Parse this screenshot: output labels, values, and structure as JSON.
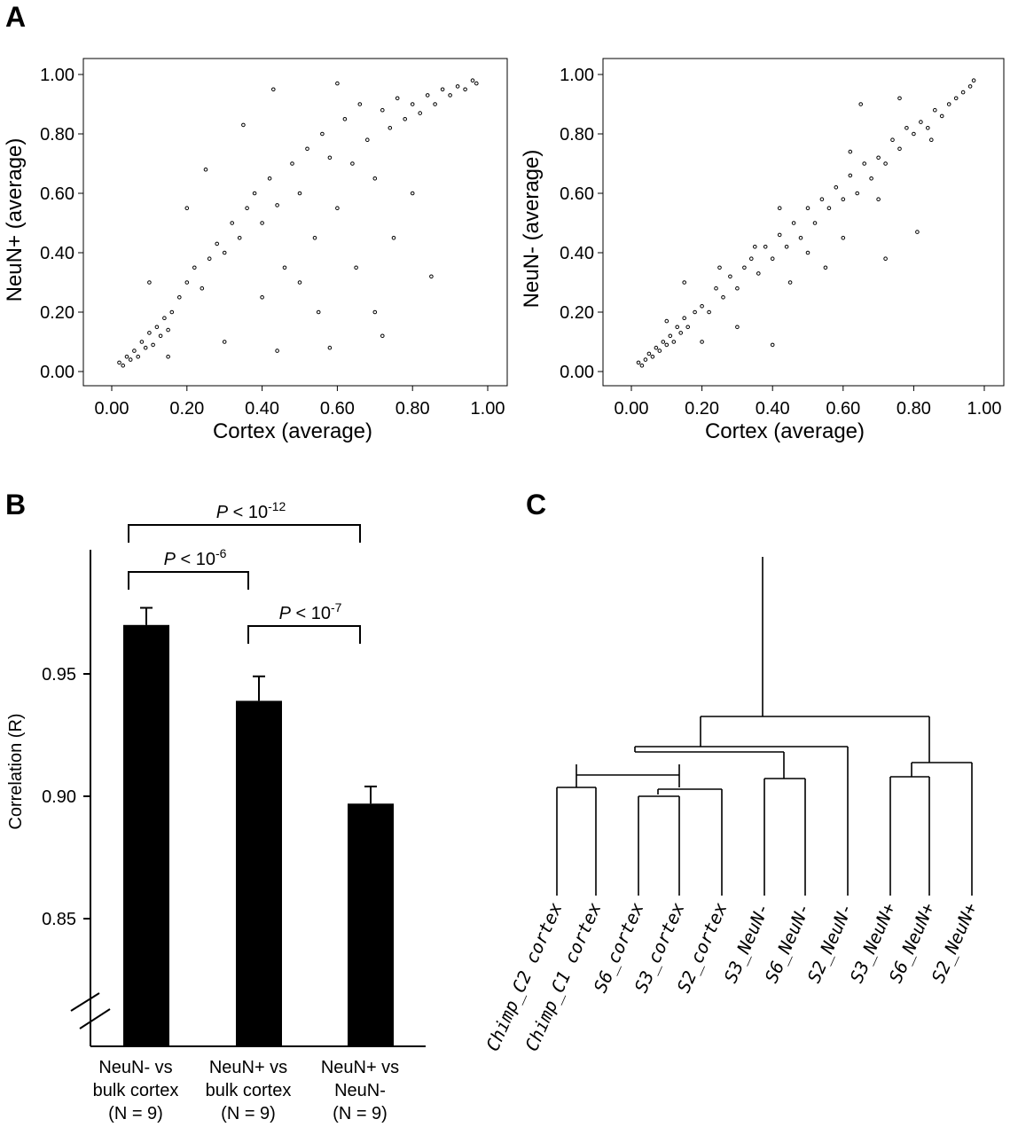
{
  "panels": {
    "A": "A",
    "B": "B",
    "C": "C"
  },
  "chart_data": [
    {
      "type": "scatter",
      "panel": "A",
      "xlabel": "Cortex (average)",
      "ylabel": "NeuN+ (average)",
      "xlim": [
        0,
        1
      ],
      "ylim": [
        0,
        1
      ],
      "xticks": [
        "0.00",
        "0.20",
        "0.40",
        "0.60",
        "0.80",
        "1.00"
      ],
      "yticks": [
        "0.00",
        "0.20",
        "0.40",
        "0.60",
        "0.80",
        "1.00"
      ],
      "points": [
        [
          0.02,
          0.03
        ],
        [
          0.03,
          0.02
        ],
        [
          0.04,
          0.05
        ],
        [
          0.05,
          0.04
        ],
        [
          0.06,
          0.07
        ],
        [
          0.07,
          0.05
        ],
        [
          0.08,
          0.1
        ],
        [
          0.09,
          0.08
        ],
        [
          0.1,
          0.13
        ],
        [
          0.11,
          0.09
        ],
        [
          0.12,
          0.15
        ],
        [
          0.13,
          0.12
        ],
        [
          0.14,
          0.18
        ],
        [
          0.15,
          0.14
        ],
        [
          0.16,
          0.2
        ],
        [
          0.18,
          0.25
        ],
        [
          0.2,
          0.3
        ],
        [
          0.22,
          0.35
        ],
        [
          0.24,
          0.28
        ],
        [
          0.26,
          0.38
        ],
        [
          0.28,
          0.43
        ],
        [
          0.3,
          0.4
        ],
        [
          0.32,
          0.5
        ],
        [
          0.34,
          0.45
        ],
        [
          0.36,
          0.55
        ],
        [
          0.38,
          0.6
        ],
        [
          0.4,
          0.5
        ],
        [
          0.42,
          0.65
        ],
        [
          0.44,
          0.56
        ],
        [
          0.46,
          0.35
        ],
        [
          0.48,
          0.7
        ],
        [
          0.5,
          0.6
        ],
        [
          0.52,
          0.75
        ],
        [
          0.54,
          0.45
        ],
        [
          0.56,
          0.8
        ],
        [
          0.58,
          0.72
        ],
        [
          0.6,
          0.55
        ],
        [
          0.62,
          0.85
        ],
        [
          0.64,
          0.7
        ],
        [
          0.66,
          0.9
        ],
        [
          0.68,
          0.78
        ],
        [
          0.7,
          0.65
        ],
        [
          0.72,
          0.88
        ],
        [
          0.74,
          0.82
        ],
        [
          0.76,
          0.92
        ],
        [
          0.78,
          0.85
        ],
        [
          0.8,
          0.9
        ],
        [
          0.82,
          0.87
        ],
        [
          0.84,
          0.93
        ],
        [
          0.86,
          0.9
        ],
        [
          0.88,
          0.95
        ],
        [
          0.9,
          0.93
        ],
        [
          0.92,
          0.96
        ],
        [
          0.94,
          0.95
        ],
        [
          0.96,
          0.98
        ],
        [
          0.97,
          0.97
        ],
        [
          0.2,
          0.55
        ],
        [
          0.25,
          0.68
        ],
        [
          0.43,
          0.95
        ],
        [
          0.35,
          0.83
        ],
        [
          0.6,
          0.97
        ],
        [
          0.44,
          0.07
        ],
        [
          0.58,
          0.08
        ],
        [
          0.72,
          0.12
        ],
        [
          0.3,
          0.1
        ],
        [
          0.5,
          0.3
        ],
        [
          0.65,
          0.35
        ],
        [
          0.75,
          0.45
        ],
        [
          0.85,
          0.32
        ],
        [
          0.7,
          0.2
        ],
        [
          0.1,
          0.3
        ],
        [
          0.15,
          0.05
        ],
        [
          0.55,
          0.2
        ],
        [
          0.4,
          0.25
        ],
        [
          0.8,
          0.6
        ]
      ]
    },
    {
      "type": "scatter",
      "panel": "A",
      "xlabel": "Cortex (average)",
      "ylabel": "NeuN- (average)",
      "xlim": [
        0,
        1
      ],
      "ylim": [
        0,
        1
      ],
      "xticks": [
        "0.00",
        "0.20",
        "0.40",
        "0.60",
        "0.80",
        "1.00"
      ],
      "yticks": [
        "0.00",
        "0.20",
        "0.40",
        "0.60",
        "0.80",
        "1.00"
      ],
      "points": [
        [
          0.02,
          0.03
        ],
        [
          0.03,
          0.02
        ],
        [
          0.04,
          0.04
        ],
        [
          0.05,
          0.06
        ],
        [
          0.06,
          0.05
        ],
        [
          0.07,
          0.08
        ],
        [
          0.08,
          0.07
        ],
        [
          0.09,
          0.1
        ],
        [
          0.1,
          0.09
        ],
        [
          0.11,
          0.12
        ],
        [
          0.12,
          0.1
        ],
        [
          0.13,
          0.15
        ],
        [
          0.14,
          0.13
        ],
        [
          0.15,
          0.18
        ],
        [
          0.16,
          0.15
        ],
        [
          0.18,
          0.2
        ],
        [
          0.2,
          0.22
        ],
        [
          0.22,
          0.2
        ],
        [
          0.24,
          0.28
        ],
        [
          0.26,
          0.25
        ],
        [
          0.28,
          0.32
        ],
        [
          0.3,
          0.28
        ],
        [
          0.32,
          0.35
        ],
        [
          0.34,
          0.38
        ],
        [
          0.36,
          0.33
        ],
        [
          0.38,
          0.42
        ],
        [
          0.4,
          0.38
        ],
        [
          0.42,
          0.46
        ],
        [
          0.44,
          0.42
        ],
        [
          0.46,
          0.5
        ],
        [
          0.48,
          0.45
        ],
        [
          0.5,
          0.55
        ],
        [
          0.52,
          0.5
        ],
        [
          0.54,
          0.58
        ],
        [
          0.56,
          0.55
        ],
        [
          0.58,
          0.62
        ],
        [
          0.6,
          0.58
        ],
        [
          0.62,
          0.66
        ],
        [
          0.64,
          0.6
        ],
        [
          0.66,
          0.7
        ],
        [
          0.68,
          0.65
        ],
        [
          0.7,
          0.72
        ],
        [
          0.72,
          0.7
        ],
        [
          0.74,
          0.78
        ],
        [
          0.76,
          0.75
        ],
        [
          0.78,
          0.82
        ],
        [
          0.8,
          0.8
        ],
        [
          0.82,
          0.84
        ],
        [
          0.84,
          0.82
        ],
        [
          0.86,
          0.88
        ],
        [
          0.88,
          0.86
        ],
        [
          0.9,
          0.9
        ],
        [
          0.92,
          0.92
        ],
        [
          0.94,
          0.94
        ],
        [
          0.96,
          0.96
        ],
        [
          0.97,
          0.98
        ],
        [
          0.76,
          0.92
        ],
        [
          0.81,
          0.47
        ],
        [
          0.72,
          0.38
        ],
        [
          0.65,
          0.9
        ],
        [
          0.55,
          0.35
        ],
        [
          0.45,
          0.3
        ],
        [
          0.35,
          0.42
        ],
        [
          0.25,
          0.35
        ],
        [
          0.15,
          0.3
        ],
        [
          0.4,
          0.09
        ],
        [
          0.6,
          0.45
        ],
        [
          0.3,
          0.15
        ],
        [
          0.5,
          0.4
        ],
        [
          0.7,
          0.58
        ],
        [
          0.2,
          0.1
        ],
        [
          0.1,
          0.17
        ],
        [
          0.85,
          0.78
        ],
        [
          0.42,
          0.55
        ],
        [
          0.62,
          0.74
        ]
      ]
    },
    {
      "type": "bar",
      "panel": "B",
      "ylabel": "Correlation (R)",
      "ylim": [
        0.8,
        0.98
      ],
      "yticks": [
        "0.85",
        "0.90",
        "0.95"
      ],
      "categories": [
        [
          "NeuN- vs",
          "bulk cortex",
          "(N = 9)"
        ],
        [
          "NeuN+ vs",
          "bulk cortex",
          "(N = 9)"
        ],
        [
          "NeuN+ vs",
          "NeuN-",
          "(N = 9)"
        ]
      ],
      "values": [
        0.97,
        0.939,
        0.897
      ],
      "errors": [
        0.007,
        0.01,
        0.007
      ],
      "significance": [
        {
          "from": 0,
          "to": 2,
          "label": "P <",
          "exponent": "-12",
          "base": "10"
        },
        {
          "from": 0,
          "to": 1,
          "label": "P <",
          "exponent": "-6",
          "base": "10"
        },
        {
          "from": 1,
          "to": 2,
          "label": "P <",
          "exponent": "-7",
          "base": "10"
        }
      ]
    },
    {
      "type": "dendrogram",
      "panel": "C",
      "leaves": [
        "Chimp_C2 cortex",
        "Chimp_C1 cortex",
        "S6_cortex",
        "S3_cortex",
        "S2_cortex",
        "S3_NeuN-",
        "S6_NeuN-",
        "S2_NeuN-",
        "S3_NeuN+",
        "S6_NeuN+",
        "S2_NeuN+"
      ]
    }
  ]
}
